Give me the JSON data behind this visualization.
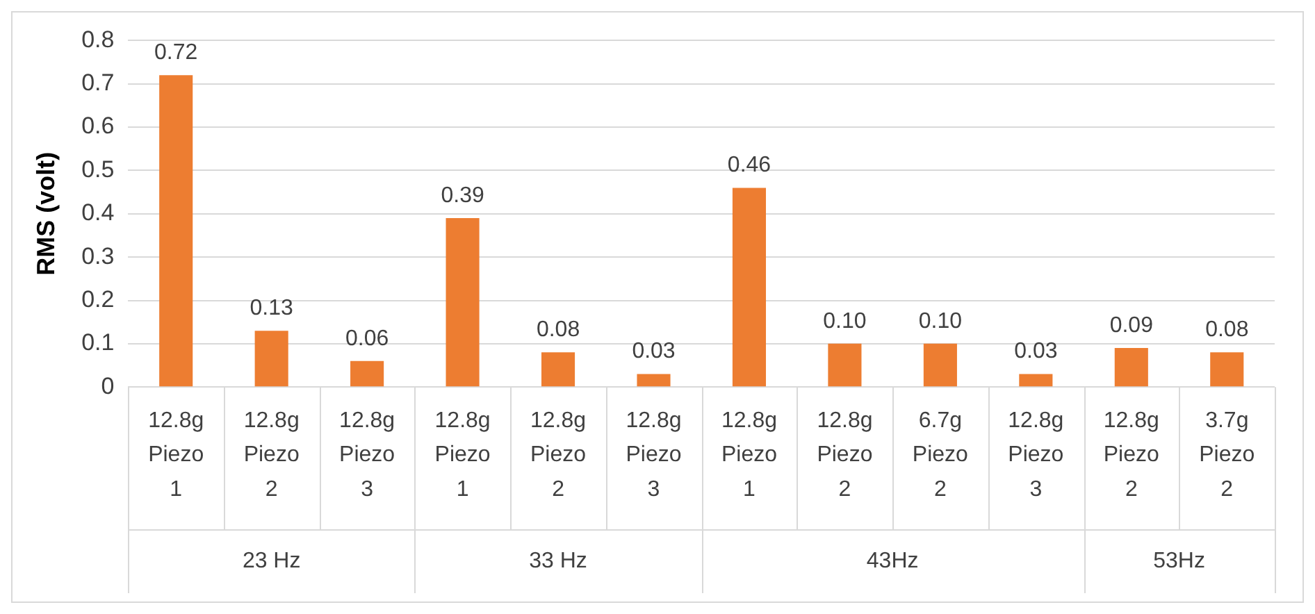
{
  "chart_data": {
    "type": "bar",
    "ylabel": "RMS (volt)",
    "categories": [
      "12.8g Piezo 1",
      "12.8g Piezo 2",
      "12.8g Piezo 3",
      "12.8g Piezo 1",
      "12.8g Piezo 2",
      "12.8g Piezo 3",
      "12.8g Piezo 1",
      "12.8g Piezo 2",
      "6.7g Piezo 2",
      "12.8g Piezo 3",
      "12.8g Piezo 2",
      "3.7g Piezo 2"
    ],
    "values": [
      0.72,
      0.13,
      0.06,
      0.39,
      0.08,
      0.03,
      0.46,
      0.1,
      0.1,
      0.03,
      0.09,
      0.08
    ],
    "value_labels": [
      "0.72",
      "0.13",
      "0.06",
      "0.39",
      "0.08",
      "0.03",
      "0.46",
      "0.10",
      "0.10",
      "0.03",
      "0.09",
      "0.08"
    ],
    "color": "#ed7d31",
    "ylim": [
      0,
      0.8
    ],
    "yticks": [
      0,
      0.1,
      0.2,
      0.3,
      0.4,
      0.5,
      0.6,
      0.7,
      0.8
    ],
    "grid": "y",
    "annotations": [
      "23 Hz",
      "33 Hz",
      "43Hz",
      "53Hz"
    ]
  }
}
